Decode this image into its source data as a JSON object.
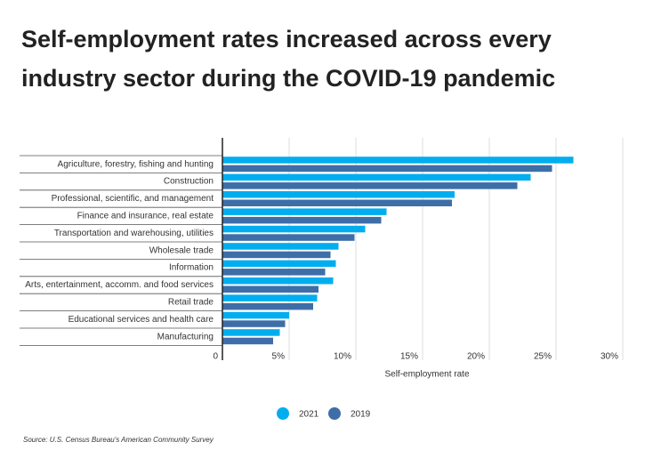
{
  "chart_data": {
    "type": "barh",
    "title": "Self-employment rates increased across every industry sector during the COVID-19 pandemic",
    "x_label": "Self-employment rate",
    "source": "Source:  U.S. Census Bureau's American Community Survey",
    "categories": [
      "Agriculture, forestry, fishing and hunting",
      "Construction",
      "Professional, scientific, and management",
      "Finance and insurance, real estate",
      "Transportation and warehousing, utilities",
      "Wholesale trade",
      "Information",
      "Arts, entertainment, accomm. and food services",
      "Retail trade",
      "Educational services and health care",
      "Manufacturing"
    ],
    "series": [
      {
        "name": "2021",
        "color": "#00aeef",
        "values": [
          26.3,
          23.1,
          17.4,
          12.3,
          10.7,
          8.7,
          8.5,
          8.3,
          7.1,
          5.0,
          4.3
        ]
      },
      {
        "name": "2019",
        "color": "#3e6ea8",
        "values": [
          24.7,
          22.1,
          17.2,
          11.9,
          9.9,
          8.1,
          7.7,
          7.2,
          6.8,
          4.7,
          3.8
        ]
      }
    ],
    "xlim": [
      0,
      30
    ],
    "xticks": [
      0,
      {
        "value": 5,
        "label": "5%"
      },
      {
        "value": 10,
        "label": "10%"
      },
      {
        "value": 15,
        "label": "15%"
      },
      {
        "value": 20,
        "label": "20%"
      },
      {
        "value": 25,
        "label": "25%"
      },
      {
        "value": 30,
        "label": "30%"
      }
    ],
    "grid": true
  }
}
